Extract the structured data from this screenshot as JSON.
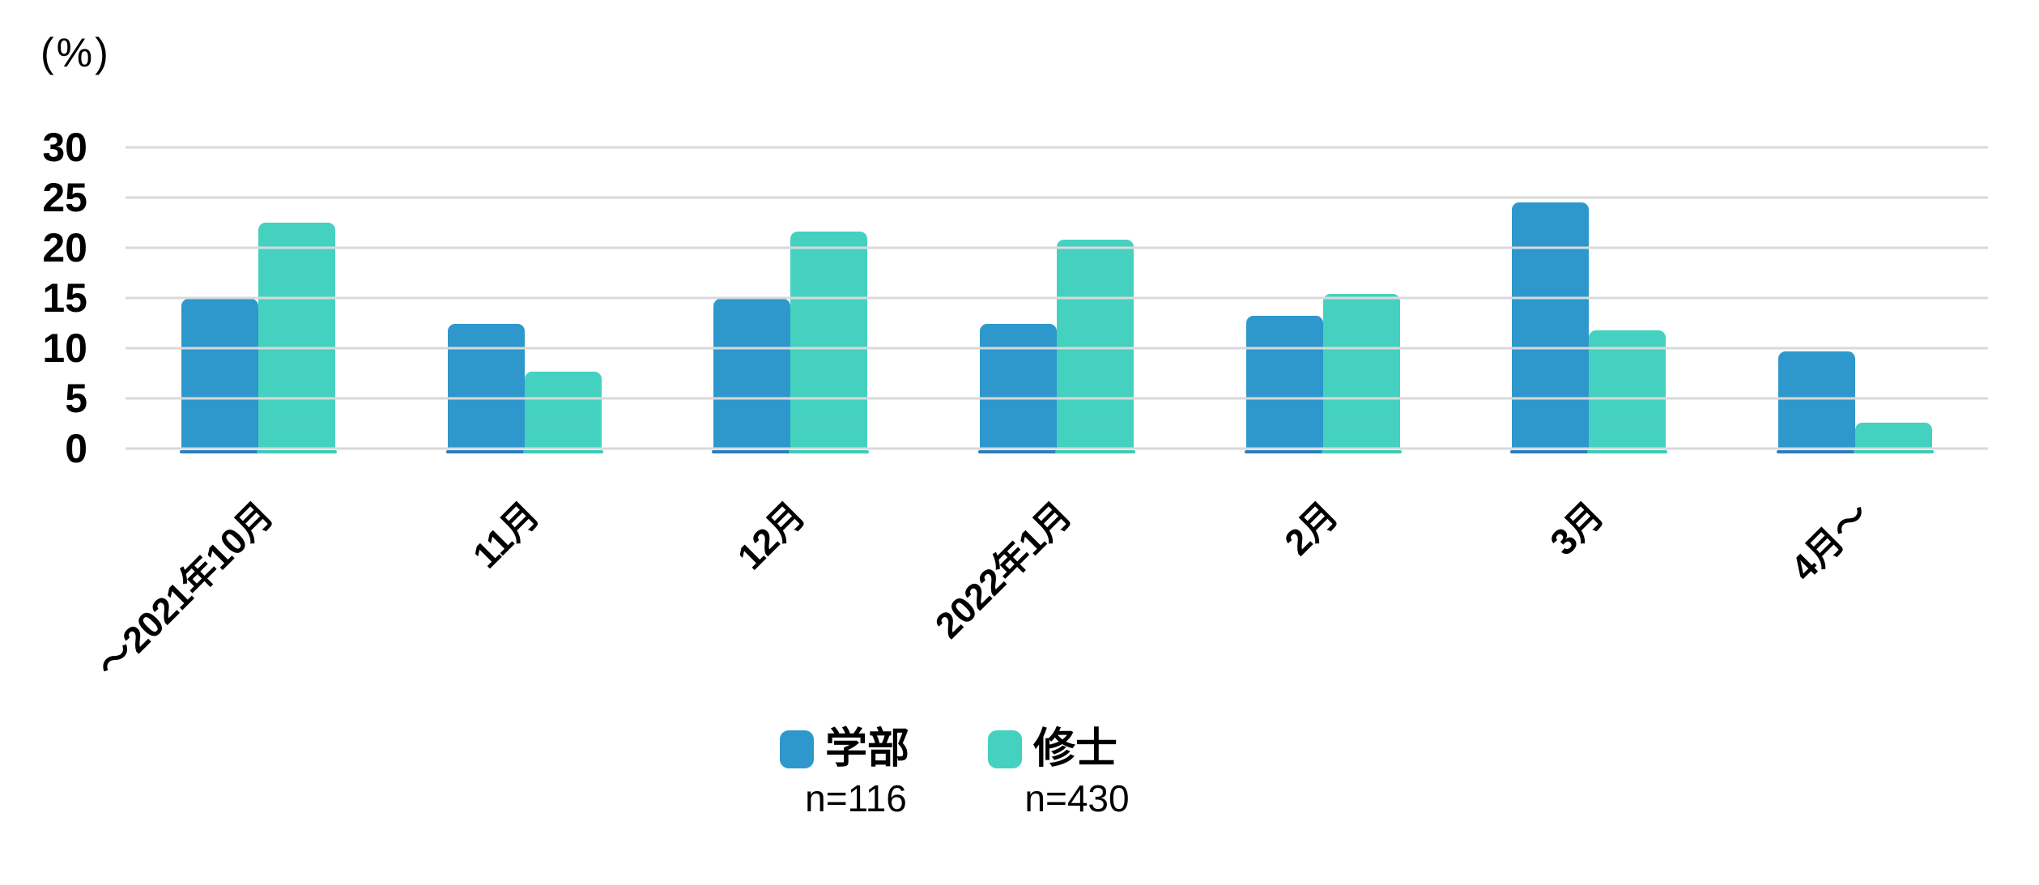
{
  "chart_data": {
    "type": "bar",
    "title": "",
    "y_unit_label": "(%)",
    "categories": [
      "～2021年10月",
      "11月",
      "12月",
      "2022年1月",
      "2月",
      "3月",
      "4月～"
    ],
    "series": [
      {
        "key": "undergraduate",
        "name": "学部",
        "n_label": "n=116",
        "color": "#2E98CC",
        "edge_color": "#2A7FBF",
        "values": [
          14.9,
          12.4,
          14.9,
          12.4,
          13.2,
          24.5,
          9.7
        ]
      },
      {
        "key": "masters",
        "name": "修士",
        "n_label": "n=430",
        "color": "#45D1BF",
        "edge_color": "#3BCCBA",
        "values": [
          22.5,
          7.7,
          21.6,
          20.8,
          15.4,
          11.8,
          2.6
        ]
      }
    ],
    "ylim": [
      0,
      30
    ],
    "yticks": [
      30,
      25,
      20,
      15,
      10,
      5,
      0
    ],
    "grid": true,
    "gridline_color": "#D9D9D9",
    "x_label_rotation_deg": 45,
    "legend_position": "bottom-center"
  }
}
